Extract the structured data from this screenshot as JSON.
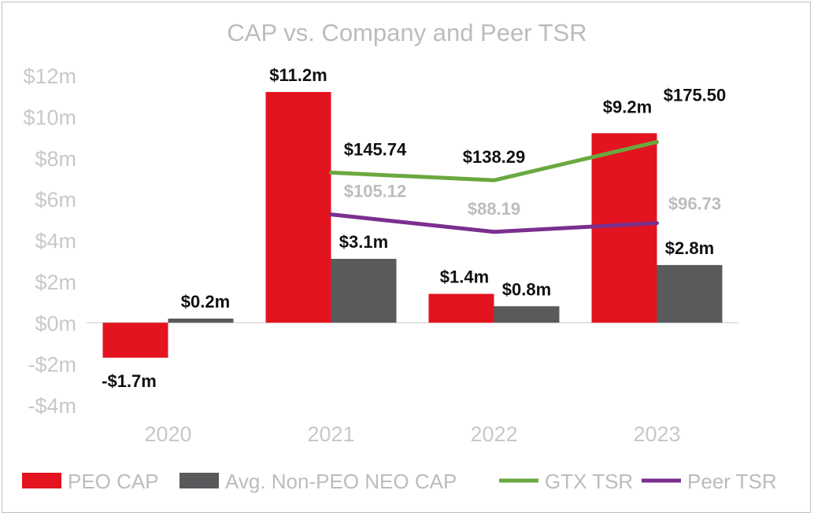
{
  "chart_data": {
    "type": "bar",
    "title": "CAP vs. Company and Peer TSR",
    "categories": [
      "2020",
      "2021",
      "2022",
      "2023"
    ],
    "ylim": [
      -4,
      12
    ],
    "yticks": [
      {
        "value": 12,
        "label": "$12m"
      },
      {
        "value": 10,
        "label": "$10m"
      },
      {
        "value": 8,
        "label": "$8m"
      },
      {
        "value": 6,
        "label": "$6m"
      },
      {
        "value": 4,
        "label": "$4m"
      },
      {
        "value": 2,
        "label": "$2m"
      },
      {
        "value": 0,
        "label": "$0m"
      },
      {
        "value": -2,
        "label": "-$2m"
      },
      {
        "value": -4,
        "label": "-$4m"
      }
    ],
    "bar_series": [
      {
        "name": "PEO CAP",
        "color": "#e3141f",
        "values": [
          -1.7,
          11.2,
          1.4,
          9.2
        ],
        "labels": [
          "-$1.7m",
          "$11.2m",
          "$1.4m",
          "$9.2m"
        ]
      },
      {
        "name": "Avg. Non-PEO NEO CAP",
        "color": "#595a5c",
        "values": [
          0.2,
          3.1,
          0.8,
          2.8
        ],
        "labels": [
          "$0.2m",
          "$3.1m",
          "$0.8m",
          "$2.8m"
        ]
      }
    ],
    "line_series": [
      {
        "name": "GTX TSR",
        "color": "#6aa840",
        "label_color": "#111111",
        "categories": [
          "2021",
          "2022",
          "2023"
        ],
        "values": [
          145.74,
          138.29,
          175.5
        ],
        "labels": [
          "$145.74",
          "$138.29",
          "$175.50"
        ]
      },
      {
        "name": "Peer TSR",
        "color": "#7a2f8f",
        "label_color": "#bdbdbd",
        "categories": [
          "2021",
          "2022",
          "2023"
        ],
        "values": [
          105.12,
          88.19,
          96.73
        ],
        "labels": [
          "$105.12",
          "$88.19",
          "$96.73"
        ]
      }
    ],
    "legend": [
      "PEO CAP",
      "Avg. Non-PEO NEO CAP",
      "GTX TSR",
      "Peer TSR"
    ],
    "legend_position": "bottom",
    "grid": false
  }
}
